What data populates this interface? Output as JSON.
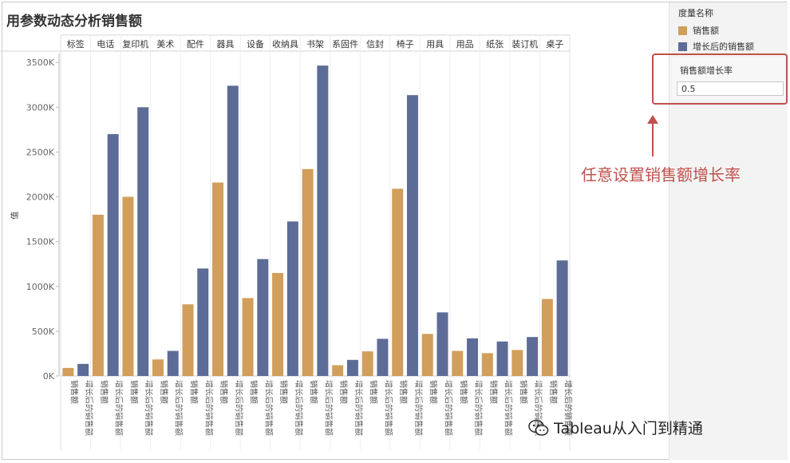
{
  "title": "用参数动态分析销售额",
  "chart_data": {
    "type": "bar",
    "ylabel": "值",
    "ylim": [
      0,
      3600000
    ],
    "yticks": [
      0,
      500000,
      1000000,
      1500000,
      2000000,
      2500000,
      3000000,
      3500000
    ],
    "ytick_labels": [
      "0K",
      "500K",
      "1000K",
      "1500K",
      "2000K",
      "2500K",
      "3000K",
      "3500K"
    ],
    "categories": [
      "标签",
      "电话",
      "复印机",
      "美术",
      "配件",
      "器具",
      "设备",
      "收纳具",
      "书架",
      "系固件",
      "信封",
      "椅子",
      "用具",
      "用品",
      "纸张",
      "装订机",
      "桌子"
    ],
    "series": [
      {
        "name": "销售额",
        "color": "#D19E5B",
        "values": [
          90000,
          1800000,
          2000000,
          185000,
          800000,
          2160000,
          870000,
          1150000,
          2310000,
          120000,
          275000,
          2090000,
          470000,
          280000,
          255000,
          290000,
          860000
        ]
      },
      {
        "name": "增长后的销售额",
        "color": "#5D6C97",
        "values": [
          135000,
          2700000,
          3000000,
          280000,
          1200000,
          3240000,
          1305000,
          1725000,
          3465000,
          180000,
          415000,
          3135000,
          710000,
          420000,
          385000,
          435000,
          1290000
        ]
      }
    ],
    "grid": false,
    "legend": "right"
  },
  "legend": {
    "title": "度量名称",
    "items": [
      {
        "label": "销售额",
        "color": "#D19E5B"
      },
      {
        "label": "增长后的销售额",
        "color": "#5D6C97"
      }
    ]
  },
  "parameter": {
    "label": "销售额增长率",
    "value": "0.5"
  },
  "annotation": "任意设置销售额增长率",
  "watermark": "Tableau从入门到精通"
}
